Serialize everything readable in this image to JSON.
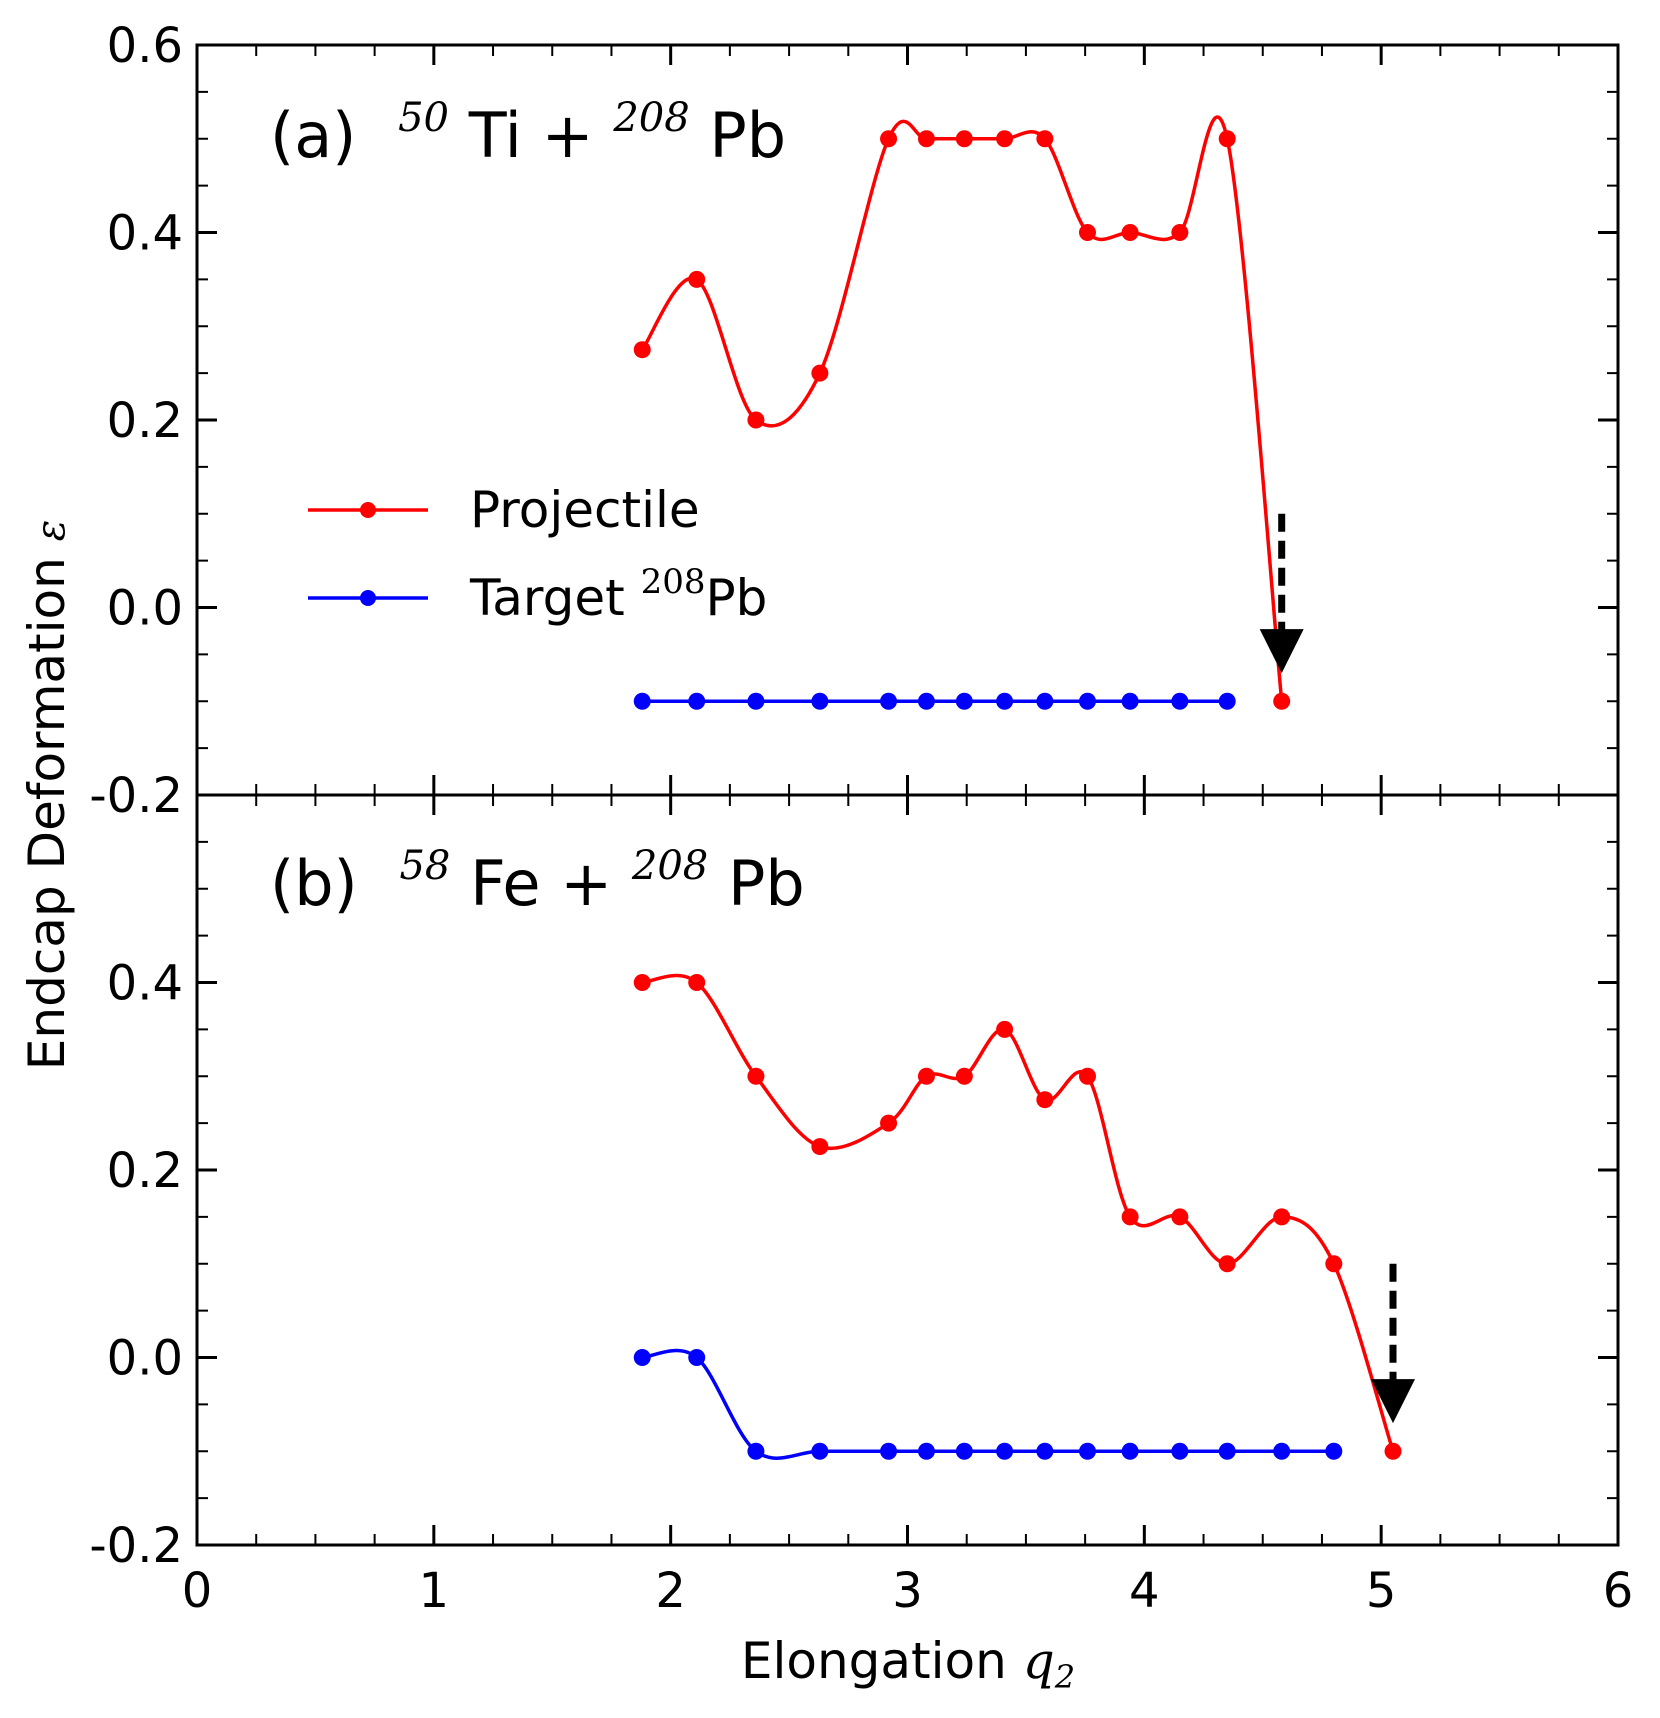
{
  "chart_data": [
    {
      "type": "line",
      "panel": "a",
      "panel_label": "(a)",
      "reaction": {
        "projectile_mass": "50",
        "projectile_symbol": "Ti",
        "plus": "+",
        "target_mass": "208",
        "target_symbol": "Pb"
      },
      "xlim": [
        0,
        6
      ],
      "ylim": [
        -0.2,
        0.6
      ],
      "x_ticks": [
        0,
        1,
        2,
        3,
        4,
        5,
        6
      ],
      "y_ticks": [
        -0.2,
        0.0,
        0.2,
        0.4,
        0.6
      ],
      "y_tick_labels": [
        "-0.2",
        "0.0",
        "0.2",
        "0.4",
        "0.6"
      ],
      "show_x_tick_labels": false,
      "series": [
        {
          "name": "Projectile",
          "color": "#ff0000",
          "x": [
            1.88,
            2.11,
            2.36,
            2.63,
            2.92,
            3.08,
            3.24,
            3.41,
            3.58,
            3.76,
            3.94,
            4.15,
            4.35,
            4.58
          ],
          "y": [
            0.275,
            0.35,
            0.2,
            0.25,
            0.5,
            0.5,
            0.5,
            0.5,
            0.5,
            0.4,
            0.4,
            0.4,
            0.5,
            -0.1
          ]
        },
        {
          "name": "Target 208Pb",
          "color": "#0000ff",
          "x": [
            1.88,
            2.11,
            2.36,
            2.63,
            2.92,
            3.08,
            3.24,
            3.41,
            3.58,
            3.76,
            3.94,
            4.15,
            4.35
          ],
          "y": [
            -0.1,
            -0.1,
            -0.1,
            -0.1,
            -0.1,
            -0.1,
            -0.1,
            -0.1,
            -0.1,
            -0.1,
            -0.1,
            -0.1,
            -0.1
          ]
        }
      ],
      "arrow": {
        "x": 4.58,
        "y_from": 0.1,
        "y_to": -0.07,
        "color": "#000000"
      },
      "legend": {
        "placement": "left-middle",
        "projectile_label": "Projectile",
        "target_label_prefix": "Target ",
        "target_mass": "208",
        "target_symbol": "Pb"
      }
    },
    {
      "type": "line",
      "panel": "b",
      "panel_label": "(b)",
      "reaction": {
        "projectile_mass": "58",
        "projectile_symbol": "Fe",
        "plus": "+",
        "target_mass": "208",
        "target_symbol": "Pb"
      },
      "xlim": [
        0,
        6
      ],
      "ylim": [
        -0.2,
        0.6
      ],
      "x_ticks": [
        0,
        1,
        2,
        3,
        4,
        5,
        6
      ],
      "x_tick_labels": [
        "0",
        "1",
        "2",
        "3",
        "4",
        "5",
        "6"
      ],
      "y_ticks": [
        -0.2,
        0.0,
        0.2,
        0.4
      ],
      "y_tick_labels": [
        "-0.2",
        "0.0",
        "0.2",
        "0.4"
      ],
      "show_x_tick_labels": true,
      "series": [
        {
          "name": "Projectile",
          "color": "#ff0000",
          "x": [
            1.88,
            2.11,
            2.36,
            2.63,
            2.92,
            3.08,
            3.24,
            3.41,
            3.58,
            3.76,
            3.94,
            4.15,
            4.35,
            4.58,
            4.8,
            5.05
          ],
          "y": [
            0.4,
            0.4,
            0.3,
            0.225,
            0.25,
            0.3,
            0.3,
            0.35,
            0.275,
            0.3,
            0.15,
            0.15,
            0.1,
            0.15,
            0.1,
            -0.1
          ]
        },
        {
          "name": "Target 208Pb",
          "color": "#0000ff",
          "x": [
            1.88,
            2.11,
            2.36,
            2.63,
            2.92,
            3.08,
            3.24,
            3.41,
            3.58,
            3.76,
            3.94,
            4.15,
            4.35,
            4.58,
            4.8
          ],
          "y": [
            0.0,
            0.0,
            -0.1,
            -0.1,
            -0.1,
            -0.1,
            -0.1,
            -0.1,
            -0.1,
            -0.1,
            -0.1,
            -0.1,
            -0.1,
            -0.1,
            -0.1
          ]
        }
      ],
      "arrow": {
        "x": 5.05,
        "y_from": 0.1,
        "y_to": -0.07,
        "color": "#000000"
      }
    }
  ],
  "axes": {
    "xlabel_text": "Elongation ",
    "xlabel_symbol": "q",
    "xlabel_subscript": "2",
    "ylabel_text": "Endcap Deformation ",
    "ylabel_symbol": "ε"
  }
}
